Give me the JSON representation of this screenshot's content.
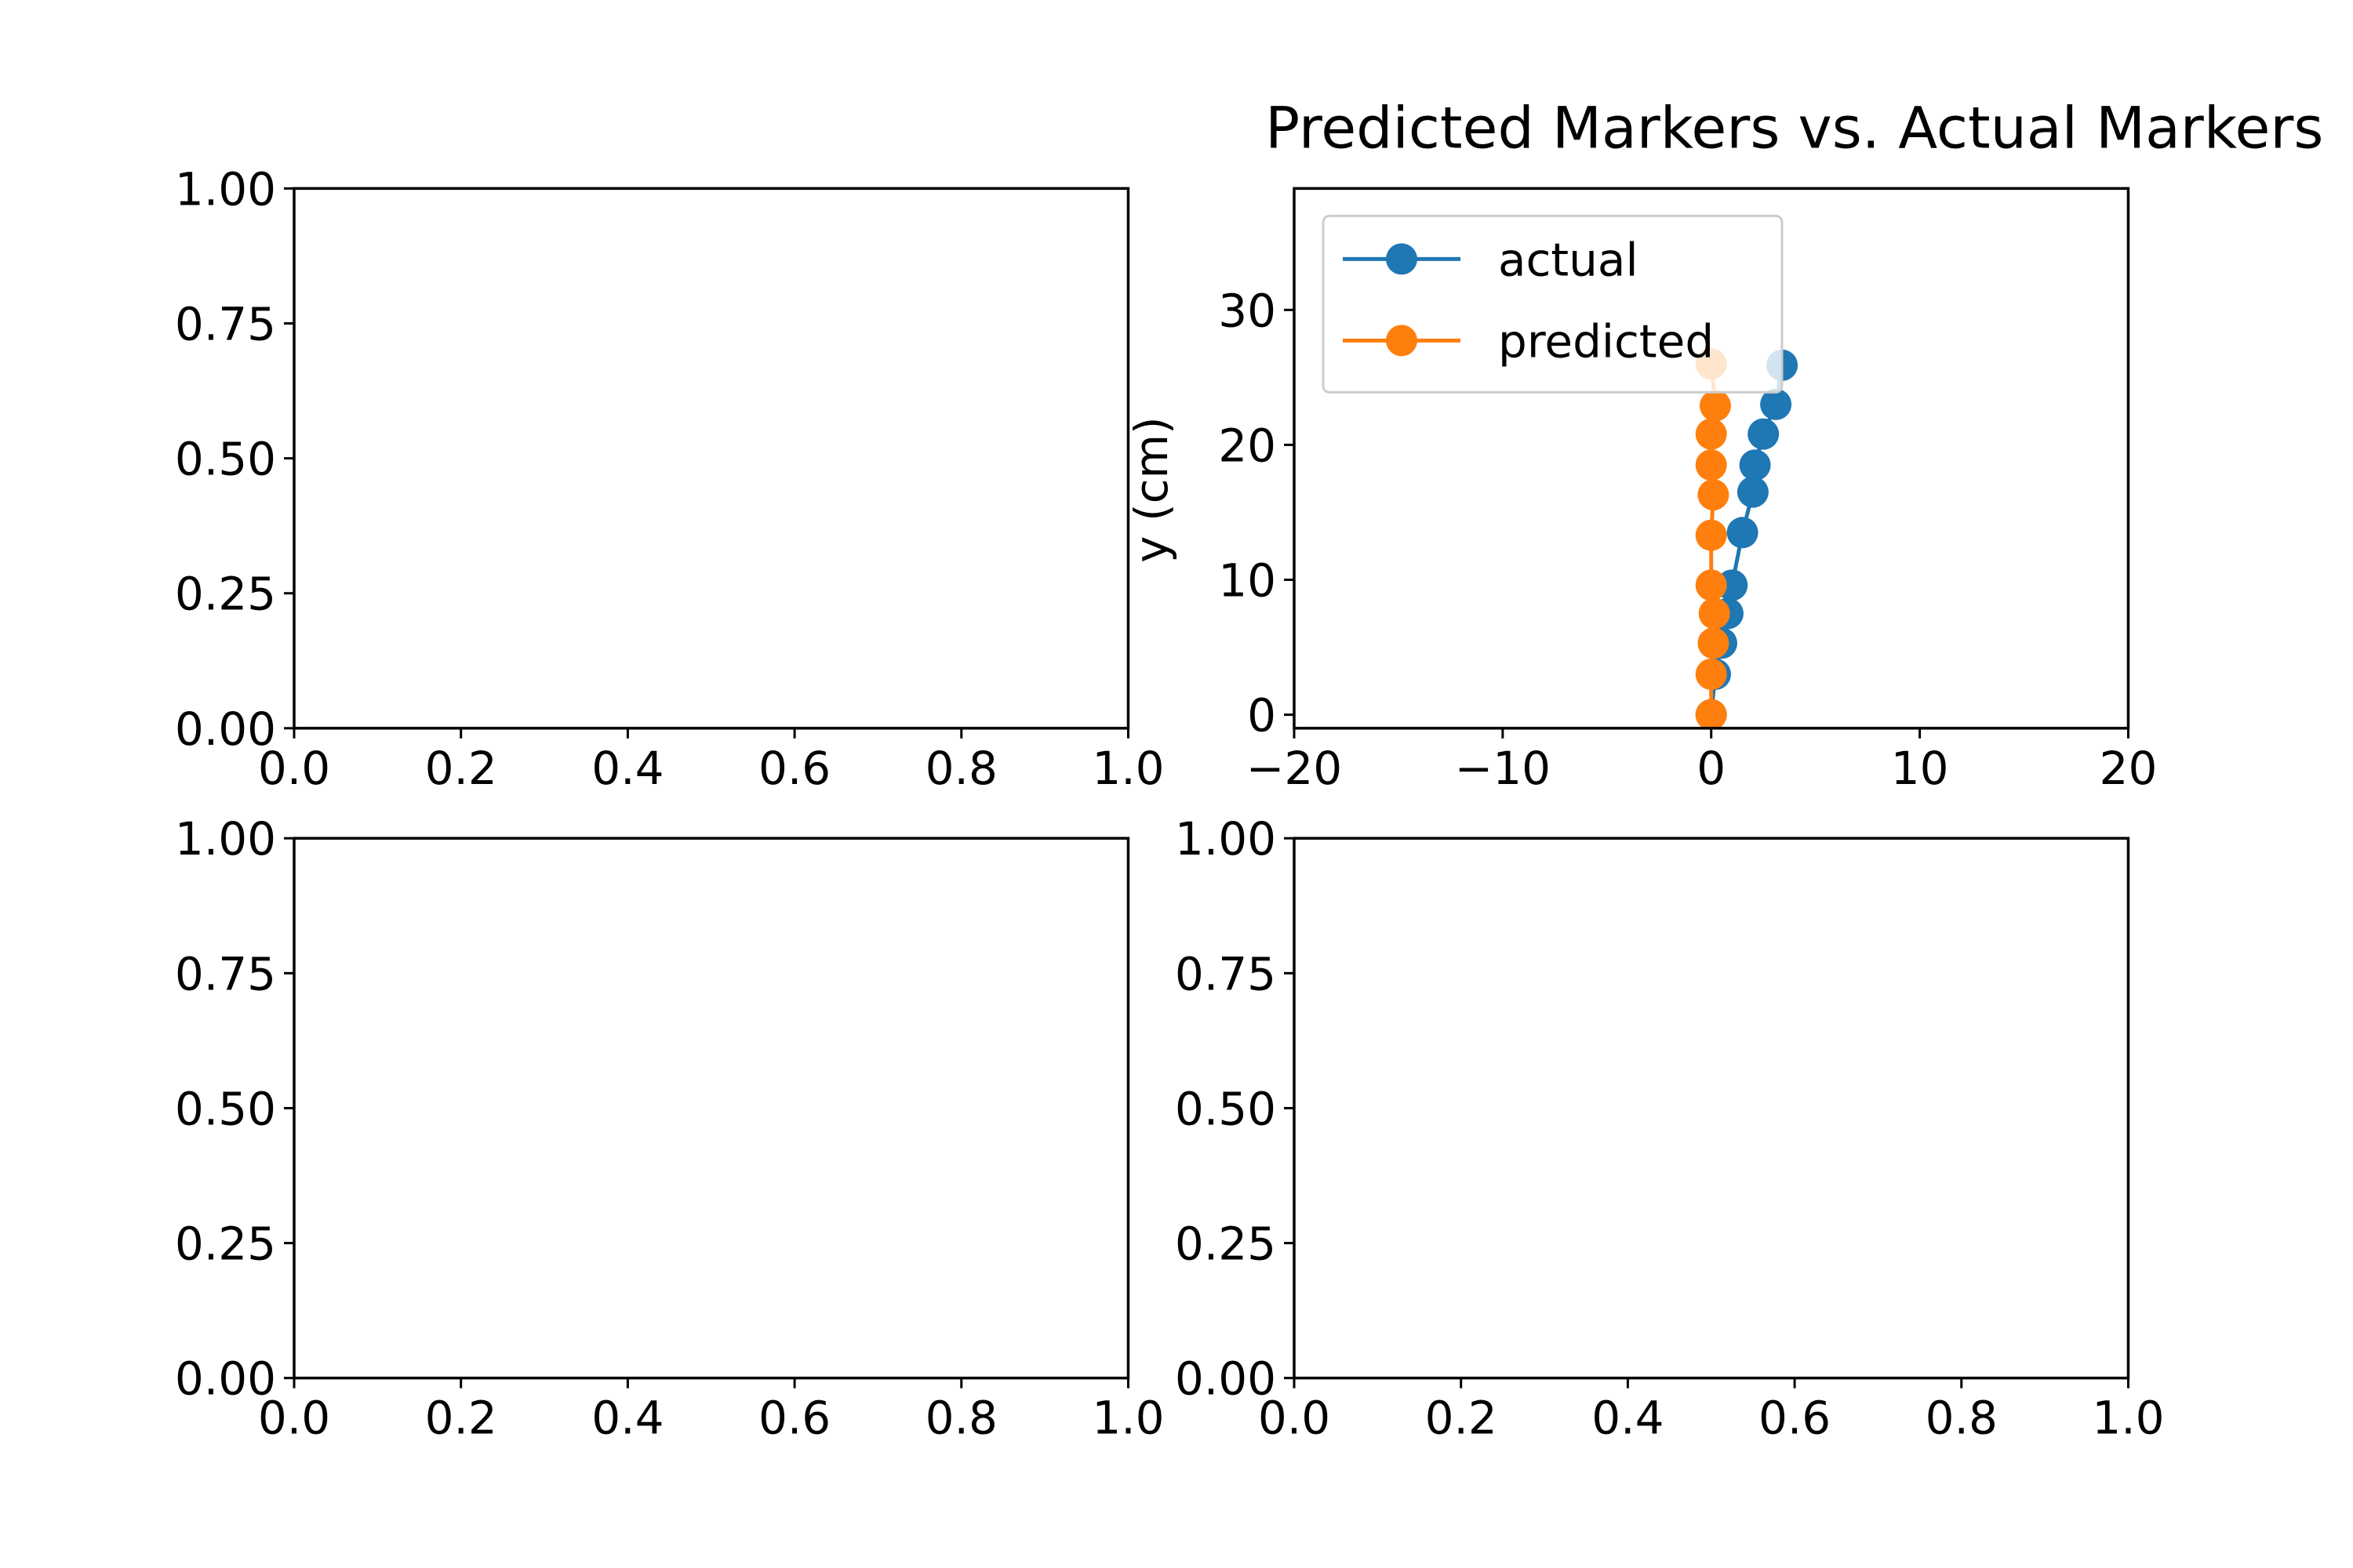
{
  "figure": {
    "background": "#ffffff"
  },
  "chart_data": [
    {
      "id": "top-left",
      "type": "line",
      "title": "",
      "xlabel": "",
      "ylabel": "",
      "xlim": [
        0,
        1
      ],
      "ylim": [
        0,
        1
      ],
      "xticks": [
        0,
        0.2,
        0.4,
        0.6,
        0.8,
        1.0
      ],
      "xtick_labels": [
        "0.0",
        "0.2",
        "0.4",
        "0.6",
        "0.8",
        "1.0"
      ],
      "yticks": [
        0,
        0.25,
        0.5,
        0.75,
        1.0
      ],
      "ytick_labels": [
        "0.00",
        "0.25",
        "0.50",
        "0.75",
        "1.00"
      ],
      "series": [],
      "legend": null
    },
    {
      "id": "top-right",
      "type": "line",
      "title": "Predicted Markers vs. Actual Markers",
      "xlabel": "",
      "ylabel": "y (cm)",
      "xlim": [
        -20,
        20
      ],
      "ylim": [
        -1,
        39
      ],
      "xticks": [
        -20,
        -10,
        0,
        10,
        20
      ],
      "xtick_labels": [
        "−20",
        "−10",
        "0",
        "10",
        "20"
      ],
      "yticks": [
        0,
        10,
        20,
        30
      ],
      "ytick_labels": [
        "0",
        "10",
        "20",
        "30"
      ],
      "grid": false,
      "legend": {
        "placement": "upper-left"
      },
      "series": [
        {
          "name": "actual",
          "color": "#1f77b4",
          "marker": "circle",
          "x": [
            0,
            0.2,
            0.5,
            0.8,
            1.0,
            1.5,
            2.0,
            2.1,
            2.5,
            3.1,
            3.4
          ],
          "y": [
            0,
            3,
            5.3,
            7.5,
            9.6,
            13.5,
            16.5,
            18.5,
            20.8,
            23,
            25.9
          ]
        },
        {
          "name": "predicted",
          "color": "#ff7f0e",
          "marker": "circle",
          "x": [
            0,
            0,
            0.1,
            0.15,
            0,
            0,
            0.1,
            0,
            0,
            0.2,
            0
          ],
          "y": [
            0,
            3,
            5.3,
            7.5,
            9.6,
            13.3,
            16.3,
            18.5,
            20.8,
            22.9,
            26
          ]
        }
      ]
    },
    {
      "id": "bottom-left",
      "type": "line",
      "title": "",
      "xlabel": "",
      "ylabel": "",
      "xlim": [
        0,
        1
      ],
      "ylim": [
        0,
        1
      ],
      "xticks": [
        0,
        0.2,
        0.4,
        0.6,
        0.8,
        1.0
      ],
      "xtick_labels": [
        "0.0",
        "0.2",
        "0.4",
        "0.6",
        "0.8",
        "1.0"
      ],
      "yticks": [
        0,
        0.25,
        0.5,
        0.75,
        1.0
      ],
      "ytick_labels": [
        "0.00",
        "0.25",
        "0.50",
        "0.75",
        "1.00"
      ],
      "series": [],
      "legend": null
    },
    {
      "id": "bottom-right",
      "type": "line",
      "title": "",
      "xlabel": "",
      "ylabel": "",
      "xlim": [
        0,
        1
      ],
      "ylim": [
        0,
        1
      ],
      "xticks": [
        0,
        0.2,
        0.4,
        0.6,
        0.8,
        1.0
      ],
      "xtick_labels": [
        "0.0",
        "0.2",
        "0.4",
        "0.6",
        "0.8",
        "1.0"
      ],
      "yticks": [
        0,
        0.25,
        0.5,
        0.75,
        1.0
      ],
      "ytick_labels": [
        "0.00",
        "0.25",
        "0.50",
        "0.75",
        "1.00"
      ],
      "series": [],
      "legend": null
    }
  ]
}
